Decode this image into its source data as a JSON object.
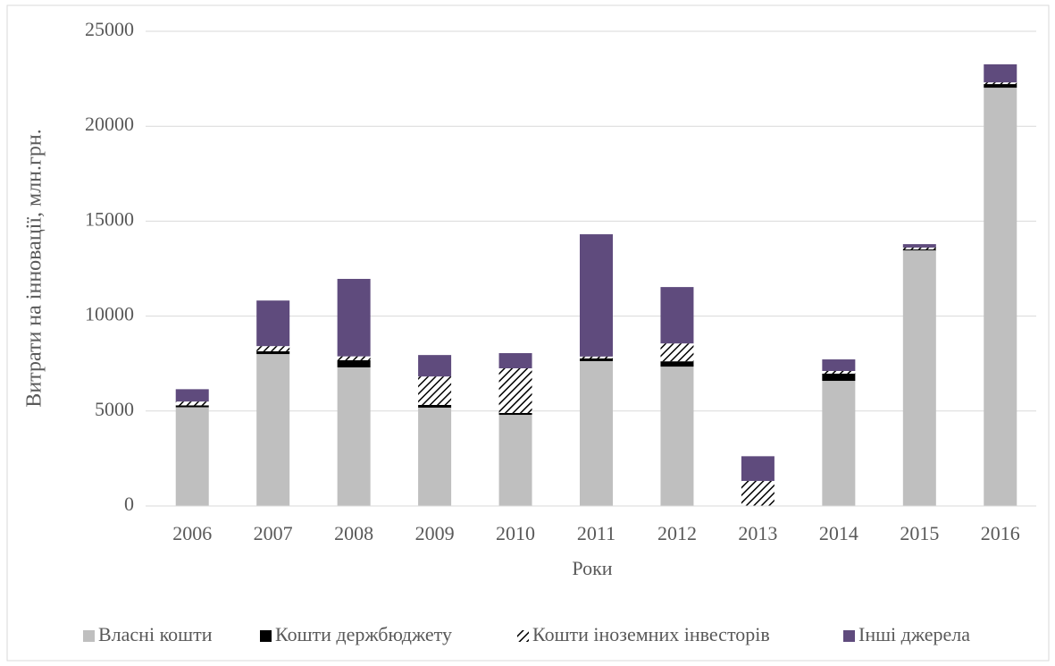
{
  "chart_data": {
    "type": "stacked_bar",
    "x_label": "Роки",
    "y_label": "Витрати на інновації, млн.грн.",
    "categories": [
      "2006",
      "2007",
      "2008",
      "2009",
      "2010",
      "2011",
      "2012",
      "2013",
      "2014",
      "2015",
      "2016"
    ],
    "series": [
      {
        "name": "Власні кошти",
        "color": "#bfbfbf",
        "values": [
          5200,
          8000,
          7300,
          5180,
          4800,
          7630,
          7340,
          0,
          6590,
          13460,
          22030
        ]
      },
      {
        "name": "Кошти держбюджету",
        "color": "#000000",
        "values": [
          100,
          150,
          380,
          140,
          100,
          140,
          280,
          20,
          380,
          50,
          190
        ]
      },
      {
        "name": "Кошти іноземних інвесторів",
        "color": "hatch",
        "values": [
          200,
          270,
          200,
          1500,
          2350,
          100,
          940,
          1300,
          140,
          100,
          90
        ]
      },
      {
        "name": "Інші джерела",
        "color": "#5f4b7d",
        "values": [
          650,
          2400,
          4080,
          1130,
          800,
          6440,
          2970,
          1300,
          610,
          180,
          950
        ]
      }
    ],
    "ylim": [
      0,
      25000
    ],
    "yticks": [
      0,
      5000,
      10000,
      15000,
      20000,
      25000
    ],
    "grid": true,
    "legend": "bottom"
  }
}
